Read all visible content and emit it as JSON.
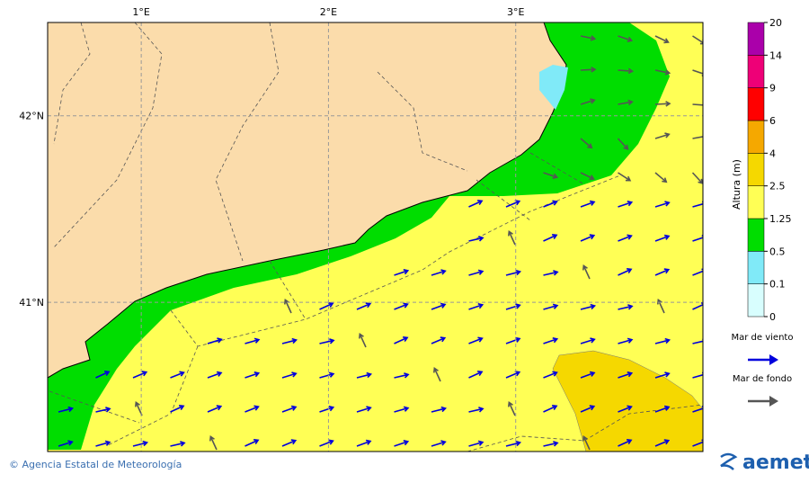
{
  "map": {
    "xlim": [
      0.5,
      4.0
    ],
    "ylim": [
      40.2,
      42.5
    ],
    "xticks": [
      {
        "value": 1,
        "label": "1°E"
      },
      {
        "value": 2,
        "label": "2°E"
      },
      {
        "value": 3,
        "label": "3°E"
      }
    ],
    "yticks": [
      {
        "value": 42,
        "label": "42°N"
      },
      {
        "value": 41,
        "label": "41°N"
      }
    ]
  },
  "colorbar": {
    "label": "Altura (m)",
    "ticks": [
      0,
      0.1,
      0.5,
      1.25,
      2.5,
      4,
      6,
      9,
      14,
      20
    ],
    "colors": [
      "#d8fefe",
      "#80eaf8",
      "#00dd00",
      "#ffff55",
      "#f5d800",
      "#f5a800",
      "#ff0000",
      "#ee0077",
      "#aa00aa"
    ]
  },
  "legend": [
    {
      "label": "Mar de viento",
      "color": "#0000dd"
    },
    {
      "label": "Mar de fondo",
      "color": "#555555"
    }
  ],
  "footer": "© Agencia Estatal de Meteorología",
  "logo": "aemet"
}
